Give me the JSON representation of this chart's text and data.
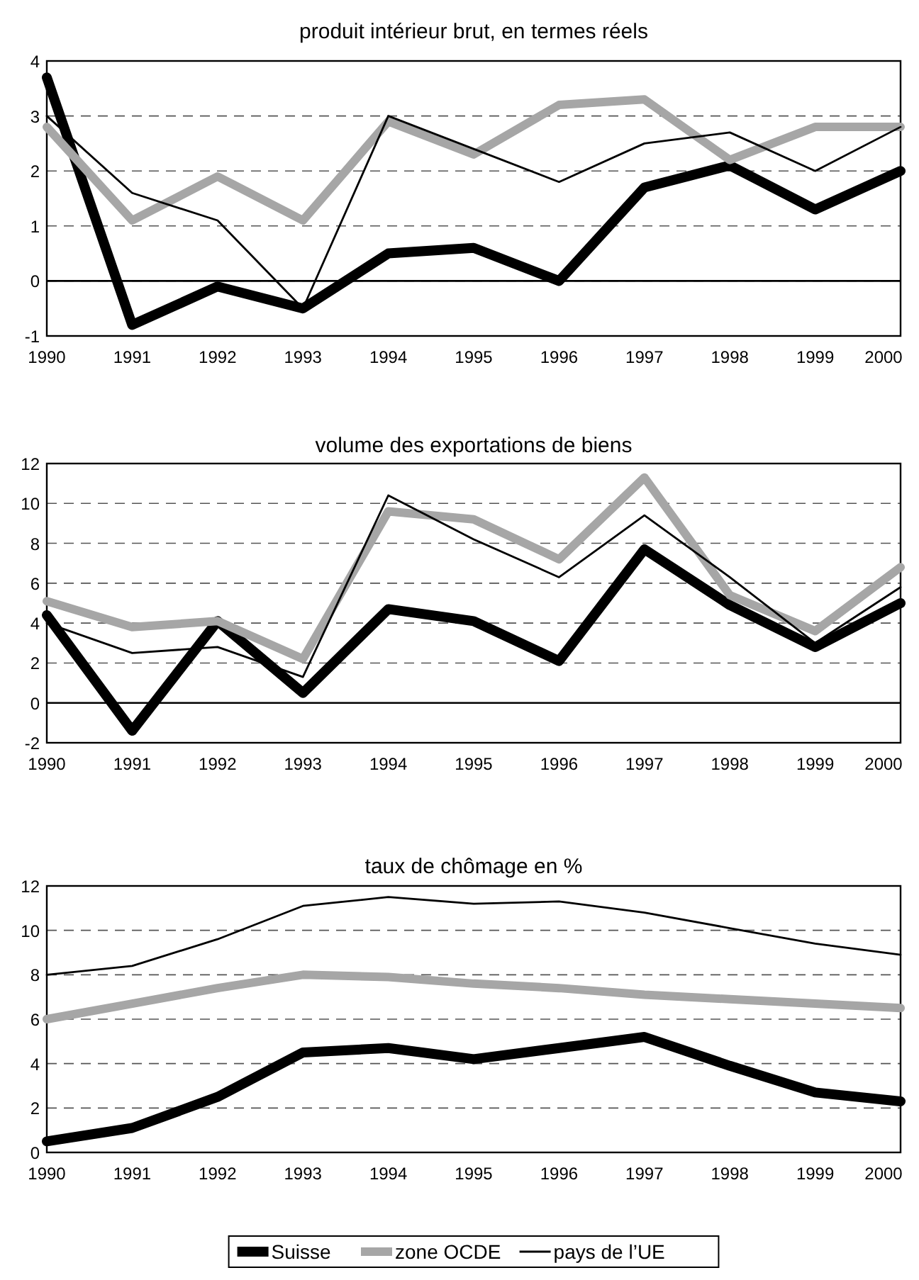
{
  "chart_data": [
    {
      "type": "line",
      "title": "produit intérieur brut, en termes réels",
      "x": [
        1990,
        1991,
        1992,
        1993,
        1994,
        1995,
        1996,
        1997,
        1998,
        1999,
        2000
      ],
      "xlim": [
        1990,
        2000
      ],
      "xticks": [
        1990,
        1991,
        1992,
        1993,
        1994,
        1995,
        1996,
        1997,
        1998,
        1999,
        2000
      ],
      "ylim": [
        -1,
        4
      ],
      "yticks": [
        -1,
        0,
        1,
        2,
        3,
        4
      ],
      "grid": "y",
      "legend": false,
      "ref_lines": [
        {
          "axis": "y",
          "value": 0,
          "line_style": "solid"
        }
      ],
      "series": [
        {
          "color": "#000000",
          "values": [
            3.7,
            -0.8,
            -0.1,
            -0.5,
            0.5,
            0.6,
            0.0,
            1.7,
            2.1,
            1.3,
            2.0
          ]
        },
        {
          "color": "#a6a6a6",
          "values": [
            2.8,
            1.1,
            1.9,
            1.1,
            2.9,
            2.3,
            3.2,
            3.3,
            2.2,
            2.8,
            2.8
          ]
        },
        {
          "color": "#000000",
          "values": [
            3.0,
            1.6,
            1.1,
            -0.5,
            3.0,
            2.4,
            1.8,
            2.5,
            2.7,
            2.0,
            2.8
          ]
        }
      ]
    },
    {
      "type": "line",
      "title": "volume des exportations de biens",
      "x": [
        1990,
        1991,
        1992,
        1993,
        1994,
        1995,
        1996,
        1997,
        1998,
        1999,
        2000
      ],
      "xlim": [
        1990,
        2000
      ],
      "xticks": [
        1990,
        1991,
        1992,
        1993,
        1994,
        1995,
        1996,
        1997,
        1998,
        1999,
        2000
      ],
      "ylim": [
        -2,
        12
      ],
      "yticks": [
        -2,
        0,
        2,
        4,
        6,
        8,
        10,
        12
      ],
      "grid": "y",
      "legend": false,
      "ref_lines": [
        {
          "axis": "y",
          "value": 0,
          "line_style": "solid"
        }
      ],
      "series": [
        {
          "color": "#000000",
          "values": [
            4.4,
            -1.4,
            4.1,
            0.5,
            4.7,
            4.1,
            2.1,
            7.7,
            4.9,
            2.8,
            5.0
          ]
        },
        {
          "color": "#a6a6a6",
          "values": [
            5.1,
            3.8,
            4.1,
            2.2,
            9.6,
            9.2,
            7.2,
            11.3,
            5.4,
            3.6,
            6.8
          ]
        },
        {
          "color": "#000000",
          "values": [
            4.0,
            2.5,
            2.8,
            1.3,
            10.4,
            8.2,
            6.3,
            9.4,
            6.3,
            3.0,
            5.8
          ]
        }
      ]
    },
    {
      "type": "line",
      "title": "taux de chômage en %",
      "x": [
        1990,
        1991,
        1992,
        1993,
        1994,
        1995,
        1996,
        1997,
        1998,
        1999,
        2000
      ],
      "xlim": [
        1990,
        2000
      ],
      "xticks": [
        1990,
        1991,
        1992,
        1993,
        1994,
        1995,
        1996,
        1997,
        1998,
        1999,
        2000
      ],
      "ylim": [
        0,
        12
      ],
      "yticks": [
        0,
        2,
        4,
        6,
        8,
        10,
        12
      ],
      "grid": "y",
      "legend": "bottom",
      "series": [
        {
          "name": "Suisse",
          "color": "#000000",
          "values": [
            0.5,
            1.1,
            2.5,
            4.5,
            4.7,
            4.2,
            4.7,
            5.2,
            3.9,
            2.7,
            2.3
          ]
        },
        {
          "name": "zone OCDE",
          "color": "#a6a6a6",
          "values": [
            6.0,
            6.7,
            7.4,
            8.0,
            7.9,
            7.6,
            7.4,
            7.1,
            6.9,
            6.7,
            6.5
          ]
        },
        {
          "name": "pays de l’UE",
          "color": "#000000",
          "values": [
            8.0,
            8.4,
            9.6,
            11.1,
            11.5,
            11.2,
            11.3,
            10.8,
            10.1,
            9.4,
            8.9
          ]
        }
      ]
    }
  ]
}
